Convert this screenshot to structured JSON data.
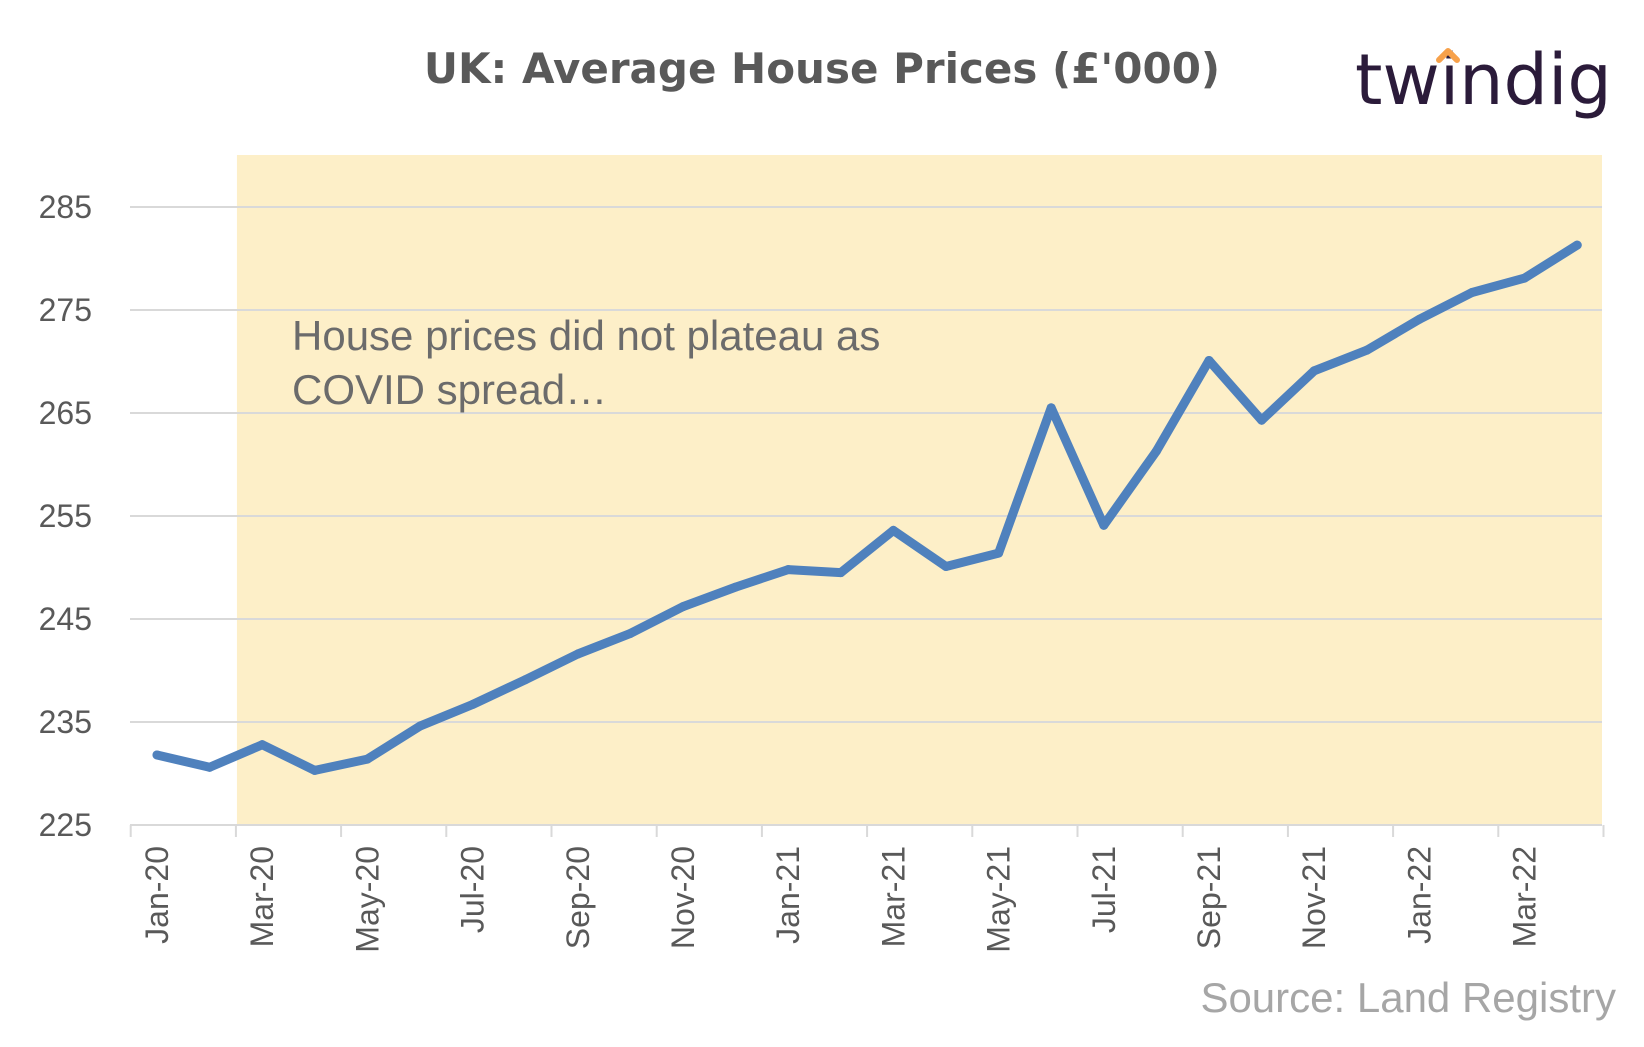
{
  "brand": {
    "logo_text": "twindig",
    "accent_color": "#f7a14a",
    "text_color": "#2b1b3a"
  },
  "chart_data": {
    "type": "line",
    "title": "UK: Average House Prices (£'000)",
    "xlabel": "",
    "ylabel": "",
    "ylim": [
      225,
      290
    ],
    "yticks": [
      225,
      235,
      245,
      255,
      265,
      275,
      285
    ],
    "grid": true,
    "legend": "none",
    "x": [
      "Jan-20",
      "Feb-20",
      "Mar-20",
      "Apr-20",
      "May-20",
      "Jun-20",
      "Jul-20",
      "Aug-20",
      "Sep-20",
      "Oct-20",
      "Nov-20",
      "Dec-20",
      "Jan-21",
      "Feb-21",
      "Mar-21",
      "Apr-21",
      "May-21",
      "Jun-21",
      "Jul-21",
      "Aug-21",
      "Sep-21",
      "Oct-21",
      "Nov-21",
      "Dec-21",
      "Jan-22",
      "Feb-22",
      "Mar-22",
      "Apr-22"
    ],
    "x_tick_labels": [
      "Jan-20",
      "Mar-20",
      "May-20",
      "Jul-20",
      "Sep-20",
      "Nov-20",
      "Jan-21",
      "Mar-21",
      "May-21",
      "Jul-21",
      "Sep-21",
      "Nov-21",
      "Jan-22",
      "Mar-22"
    ],
    "series": [
      {
        "color": "#4f81bd",
        "values": [
          231.8,
          230.6,
          232.8,
          230.3,
          231.4,
          234.6,
          236.7,
          239.1,
          241.6,
          243.6,
          246.2,
          248.1,
          249.8,
          249.5,
          253.6,
          250.1,
          251.4,
          265.5,
          254.1,
          261.3,
          270.1,
          264.3,
          269.1,
          271.1,
          274.1,
          276.7,
          278.1,
          281.3
        ]
      }
    ],
    "shaded_region": {
      "from": "Mar-20",
      "to": "Apr-22",
      "color": "#fdefc8"
    },
    "annotation": {
      "lines": [
        "House prices did not plateau as",
        "COVID spread…"
      ]
    },
    "source": "Source: Land Registry"
  }
}
